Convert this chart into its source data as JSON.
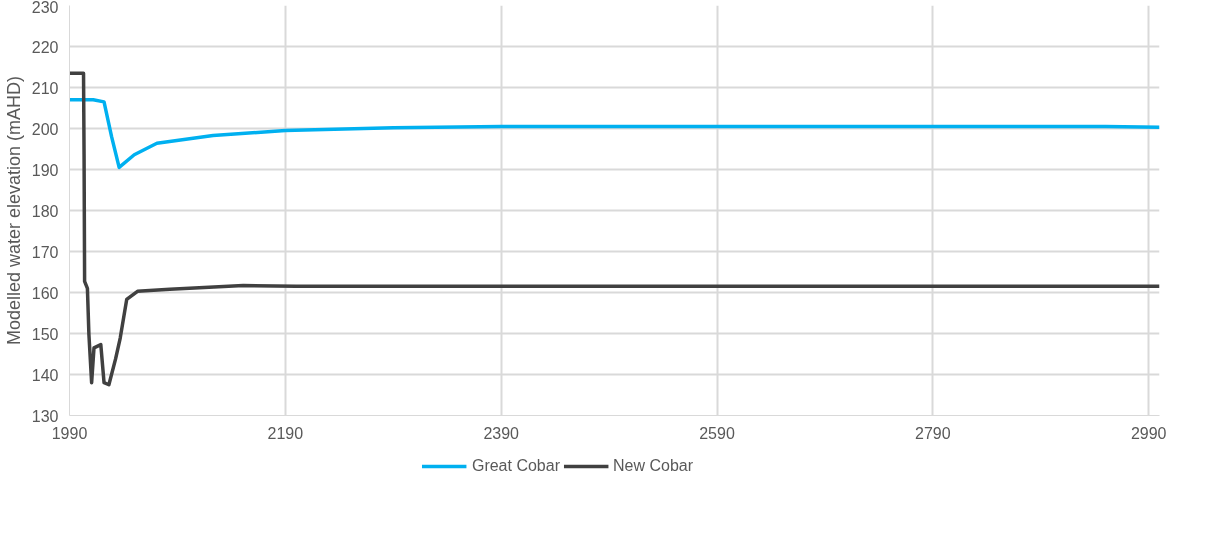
{
  "chart_data": {
    "type": "line",
    "ylabel": "Modelled water elevation (mAHD)",
    "xlim": [
      1990,
      3000
    ],
    "xticks": [
      1990,
      2190,
      2390,
      2590,
      2790,
      2990
    ],
    "ylim": [
      130,
      230
    ],
    "yticks": [
      130,
      140,
      150,
      160,
      170,
      180,
      190,
      200,
      210,
      220,
      230
    ],
    "grid": true,
    "legend": "bottom",
    "marker": "none",
    "line_style": "solid",
    "series": [
      {
        "name": "Great Cobar",
        "color": "#00b0f0",
        "x": [
          1990,
          2012,
          2022,
          2029,
          2036,
          2050,
          2071,
          2123,
          2190,
          2290,
          2390,
          2950,
          3000
        ],
        "values": [
          207,
          207,
          206.5,
          198,
          190.5,
          193.6,
          196.4,
          198.3,
          199.5,
          200.2,
          200.5,
          200.5,
          200.3
        ]
      },
      {
        "name": "New Cobar",
        "color": "#404040",
        "x": [
          1990,
          2003,
          2003.5,
          2004,
          2006.6,
          2008,
          2010.5,
          2012.7,
          2019,
          2022,
          2026.5,
          2032.7,
          2037,
          2043,
          2053,
          2083,
          2151,
          2200,
          3000
        ],
        "values": [
          213.5,
          213.5,
          193.6,
          162.7,
          161,
          149.7,
          138,
          146.5,
          147.3,
          138,
          137.5,
          143.8,
          148.9,
          158.3,
          160.3,
          160.8,
          161.7,
          161.5,
          161.5
        ]
      }
    ]
  }
}
